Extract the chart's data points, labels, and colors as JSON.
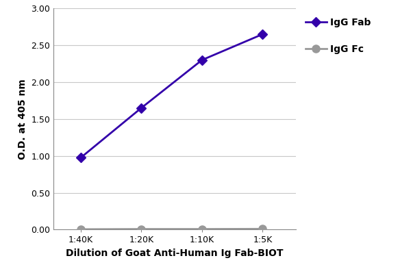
{
  "x_labels": [
    "1:40K",
    "1:20K",
    "1:10K",
    "1:5K"
  ],
  "x_positions": [
    1,
    2,
    3,
    4
  ],
  "igg_fab_values": [
    0.975,
    1.65,
    2.3,
    2.65
  ],
  "igg_fc_values": [
    0.005,
    0.008,
    0.008,
    0.01
  ],
  "igg_fab_color": "#3300AA",
  "igg_fc_color": "#999999",
  "igg_fab_label": "IgG Fab",
  "igg_fc_label": "IgG Fc",
  "xlabel": "Dilution of Goat Anti-Human Ig Fab-BIOT",
  "ylabel": "O.D. at 405 nm",
  "ylim": [
    0.0,
    3.0
  ],
  "yticks": [
    0.0,
    0.5,
    1.0,
    1.5,
    2.0,
    2.5,
    3.0
  ],
  "ytick_labels": [
    "0.00",
    "0.50",
    "1.00",
    "1.50",
    "2.00",
    "2.50",
    "3.00"
  ],
  "background_color": "#ffffff",
  "grid_color": "#c8c8c8",
  "axis_label_fontsize": 10,
  "tick_fontsize": 9,
  "legend_fontsize": 10,
  "line_width": 2.0,
  "fab_marker_size": 7,
  "fc_marker_size": 8
}
